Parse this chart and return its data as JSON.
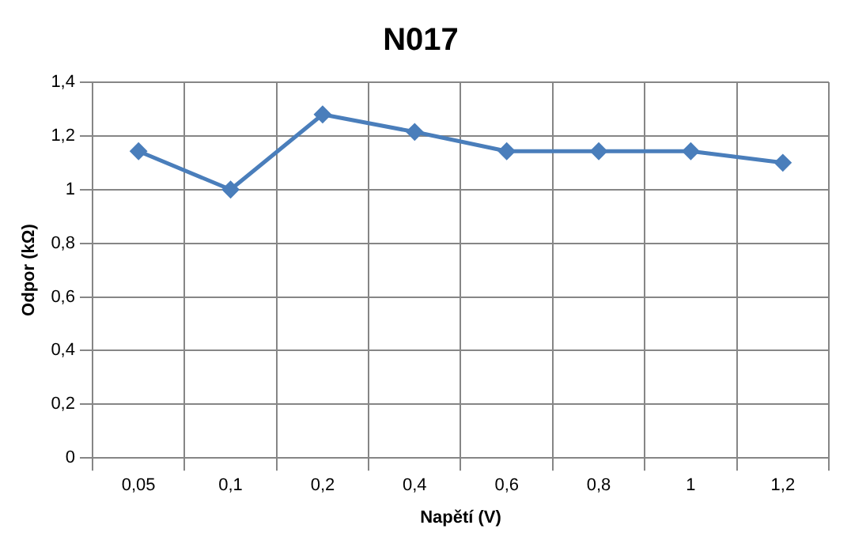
{
  "chart_data": {
    "type": "line",
    "title": "N017",
    "xlabel": "Napětí (V)",
    "ylabel": "Odpor (kΩ)",
    "categories": [
      "0,05",
      "0,1",
      "0,2",
      "0,4",
      "0,6",
      "0,8",
      "1",
      "1,2"
    ],
    "series": [
      {
        "color": "#4a7ebb",
        "values": [
          1.143,
          1.0,
          1.28,
          1.215,
          1.143,
          1.143,
          1.143,
          1.1
        ]
      }
    ],
    "ylim": [
      0,
      1.4
    ],
    "yticks": [
      0,
      {
        "value": 0.2,
        "label": "0,2"
      },
      {
        "value": 0.4,
        "label": "0,4"
      },
      {
        "value": 0.6,
        "label": "0,6"
      },
      {
        "value": 0.8,
        "label": "0,8"
      },
      1,
      {
        "value": 1.2,
        "label": "1,2"
      },
      {
        "value": 1.4,
        "label": "1,4"
      }
    ],
    "grid": true,
    "legend": false,
    "marker": "diamond",
    "line_style": "solid"
  }
}
